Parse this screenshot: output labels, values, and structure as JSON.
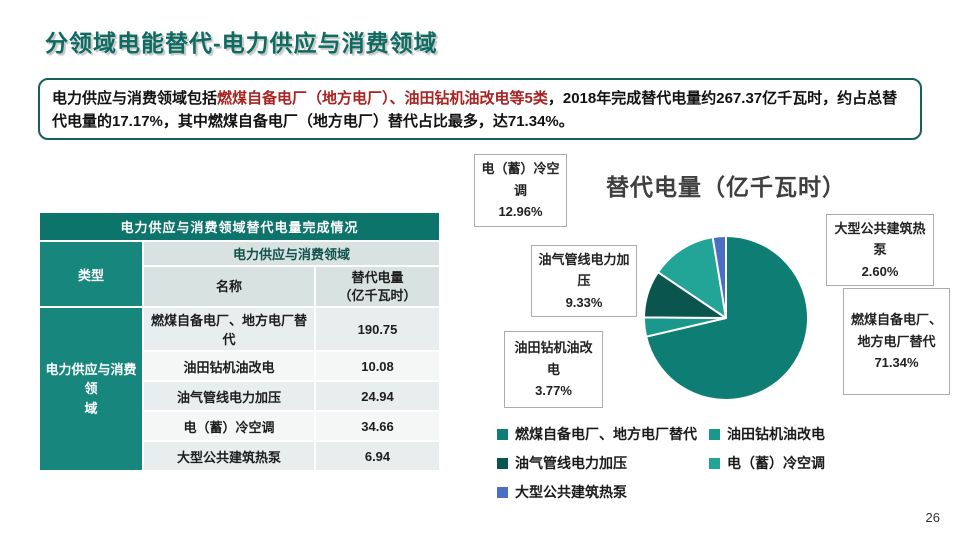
{
  "slide": {
    "title": "分领域电能替代-电力供应与消费领域",
    "page_number": "26",
    "accent_color": "#0d6b62"
  },
  "textbox": {
    "part1": "电力供应与消费领域包括",
    "highlight": "燃煤自备电厂（地方电厂）、油田钻机油改电等5类",
    "part2": "，2018年完成替代电量约267.37亿千瓦时，约占总替代电量的17.17%，其中燃煤自备电厂（地方电厂）替代占比最多，达71.34%。",
    "highlight_color": "#a82321"
  },
  "table": {
    "title": "电力供应与消费领域替代电量完成情况",
    "type_header": "类型",
    "group_header": "电力供应与消费领域",
    "name_header": "名称",
    "value_header": "替代电量\n（亿千瓦时）",
    "category": "电力供应与消费领\n域",
    "rows": [
      {
        "name": "燃煤自备电厂、地方电厂替代",
        "value": "190.75"
      },
      {
        "name": "油田钻机油改电",
        "value": "10.08"
      },
      {
        "name": "油气管线电力加压",
        "value": "24.94"
      },
      {
        "name": "电（蓄）冷空调",
        "value": "34.66"
      },
      {
        "name": "大型公共建筑热泵",
        "value": "6.94"
      }
    ]
  },
  "chart_data": {
    "type": "pie",
    "title": "替代电量（亿千瓦时）",
    "unit": "%",
    "start_angle_deg": 0,
    "direction": "clockwise",
    "labels": [
      "燃煤自备电厂、地方电厂替代",
      "油田钻机油改电",
      "油气管线电力加压",
      "电（蓄）冷空调",
      "大型公共建筑热泵"
    ],
    "values": [
      71.34,
      3.77,
      9.33,
      12.96,
      2.6
    ],
    "values_yi_kwh": [
      190.75,
      10.08,
      24.94,
      34.66,
      6.94
    ],
    "colors": [
      "#0e7e74",
      "#1b988b",
      "#0a564e",
      "#22a496",
      "#4a6fc0"
    ],
    "callouts": [
      {
        "name": "电（蓄）冷空调",
        "pct": "12.96%"
      },
      {
        "name": "油气管线电力加压",
        "pct": "9.33%"
      },
      {
        "name": "油田钻机油改电",
        "pct": "3.77%"
      },
      {
        "name": "大型公共建筑热泵",
        "pct": "2.60%"
      },
      {
        "name": "燃煤自备电厂、地方电厂替代",
        "pct": "71.34%"
      }
    ],
    "legend_position": "bottom",
    "legend": [
      {
        "label": "燃煤自备电厂、地方电厂替代",
        "color": "#0e7e74"
      },
      {
        "label": "油田钻机油改电",
        "color": "#1b988b"
      },
      {
        "label": "油气管线电力加压",
        "color": "#0a564e"
      },
      {
        "label": "电（蓄）冷空调",
        "color": "#22a496"
      },
      {
        "label": "大型公共建筑热泵",
        "color": "#4a6fc0"
      }
    ]
  }
}
